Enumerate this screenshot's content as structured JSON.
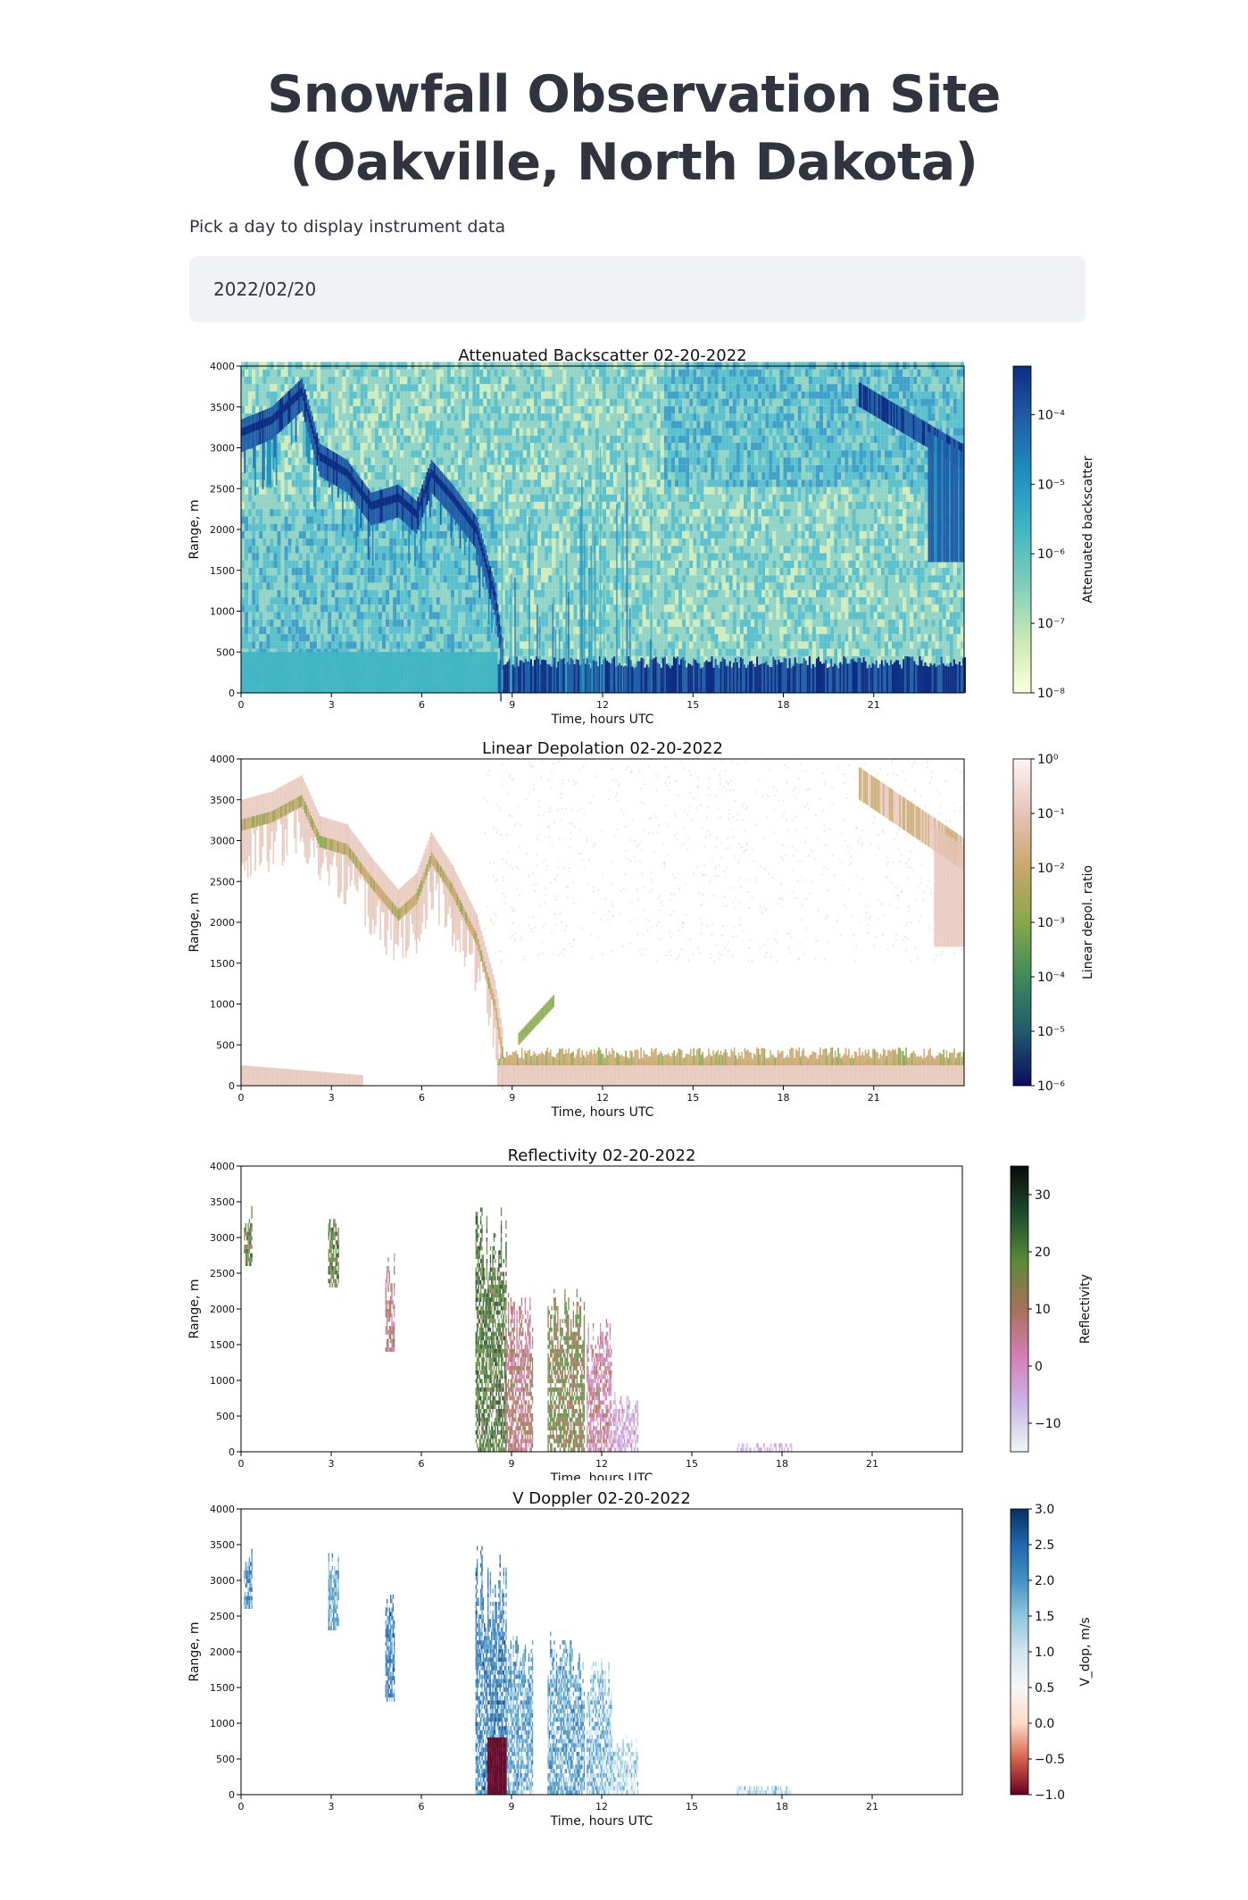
{
  "page": {
    "title": "Snowfall Observation Site (Oakville, North Dakota)",
    "date_label": "Pick a day to display instrument data",
    "date_value": "2022/02/20"
  },
  "chart_data": [
    {
      "type": "heatmap",
      "title": "Attenuated Backscatter 02-20-2022",
      "xlabel": "Time, hours UTC",
      "ylabel": "Range, m",
      "xlim": [
        0,
        24
      ],
      "ylim": [
        0,
        4000
      ],
      "xticks": [
        0,
        3,
        6,
        9,
        12,
        15,
        18,
        21
      ],
      "yticks": [
        0,
        500,
        1000,
        1500,
        2000,
        2500,
        3000,
        3500,
        4000
      ],
      "colorbar": {
        "label": "Attenuated backscatter",
        "scale": "log",
        "range": [
          1e-08,
          0.0005
        ],
        "ticks": [
          "10⁻⁸",
          "10⁻⁷",
          "10⁻⁶",
          "10⁻⁵",
          "10⁻⁴"
        ],
        "colormap": [
          "#ffffd9",
          "#c7e9b4",
          "#7fcdbb",
          "#41b6c4",
          "#1d91c0",
          "#225ea8",
          "#0c2c84"
        ]
      }
    },
    {
      "type": "heatmap",
      "title": "Linear Depolation 02-20-2022",
      "xlabel": "Time, hours UTC",
      "ylabel": "Range, m",
      "xlim": [
        0,
        24
      ],
      "ylim": [
        0,
        4000
      ],
      "xticks": [
        0,
        3,
        6,
        9,
        12,
        15,
        18,
        21
      ],
      "yticks": [
        0,
        500,
        1000,
        1500,
        2000,
        2500,
        3000,
        3500,
        4000
      ],
      "colorbar": {
        "label": "Linear depol. ratio",
        "scale": "log",
        "range": [
          1e-06,
          1
        ],
        "ticks": [
          "10⁻⁶",
          "10⁻⁵",
          "10⁻⁴",
          "10⁻³",
          "10⁻²",
          "10⁻¹",
          "10⁰"
        ],
        "colormap": [
          "#0b0b5e",
          "#1f5b6e",
          "#3f8a5a",
          "#86a84a",
          "#c9a66b",
          "#e6c4b8",
          "#fdf4f2"
        ]
      }
    },
    {
      "type": "heatmap",
      "title": "Reflectivity 02-20-2022",
      "xlabel": "Time, hours UTC",
      "ylabel": "Range, m",
      "xlim": [
        0,
        24
      ],
      "ylim": [
        0,
        4000
      ],
      "xticks": [
        0,
        3,
        6,
        9,
        12,
        15,
        18,
        21
      ],
      "yticks": [
        0,
        500,
        1000,
        1500,
        2000,
        2500,
        3000,
        3500,
        4000
      ],
      "colorbar": {
        "label": "Reflectivity",
        "scale": "linear",
        "range": [
          -15,
          35
        ],
        "ticks": [
          "−10",
          "0",
          "10",
          "20",
          "30"
        ],
        "colormap": [
          "#eef7f4",
          "#c9b6e8",
          "#d47fb6",
          "#a8705a",
          "#5a8a3a",
          "#1f4a2e",
          "#0b0b0b"
        ]
      }
    },
    {
      "type": "heatmap",
      "title": "V Doppler 02-20-2022",
      "xlabel": "Time, hours UTC",
      "ylabel": "Range, m",
      "xlim": [
        0,
        24
      ],
      "ylim": [
        0,
        4000
      ],
      "xticks": [
        0,
        3,
        6,
        9,
        12,
        15,
        18,
        21
      ],
      "yticks": [
        0,
        500,
        1000,
        1500,
        2000,
        2500,
        3000,
        3500,
        4000
      ],
      "colorbar": {
        "label": "V_dop, m/s",
        "scale": "linear",
        "range": [
          -1,
          3
        ],
        "ticks": [
          "−1.0",
          "−0.5",
          "0.0",
          "0.5",
          "1.0",
          "1.5",
          "2.0",
          "2.5",
          "3.0"
        ],
        "colormap": [
          "#67001f",
          "#d6604d",
          "#fddbc7",
          "#f7f7f7",
          "#d1e5f0",
          "#92c5de",
          "#4393c3",
          "#2166ac",
          "#053061"
        ]
      }
    }
  ]
}
